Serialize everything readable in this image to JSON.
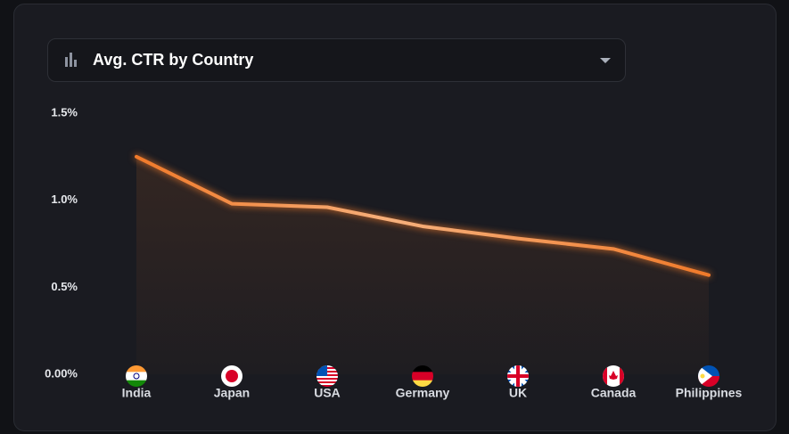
{
  "chart_data": {
    "type": "line",
    "title": "Avg. CTR by Country",
    "categories": [
      "India",
      "Japan",
      "USA",
      "Germany",
      "UK",
      "Canada",
      "Philippines"
    ],
    "values": [
      1.25,
      0.98,
      0.96,
      0.85,
      0.78,
      0.72,
      0.57
    ],
    "color": "#f07a2a",
    "ylim": [
      0,
      1.5
    ],
    "yticks": [
      {
        "value": 0,
        "label": "0.00%"
      },
      {
        "value": 0.5,
        "label": "0.5%"
      },
      {
        "value": 1.0,
        "label": "1.0%"
      },
      {
        "value": 1.5,
        "label": "1.5%"
      }
    ]
  }
}
